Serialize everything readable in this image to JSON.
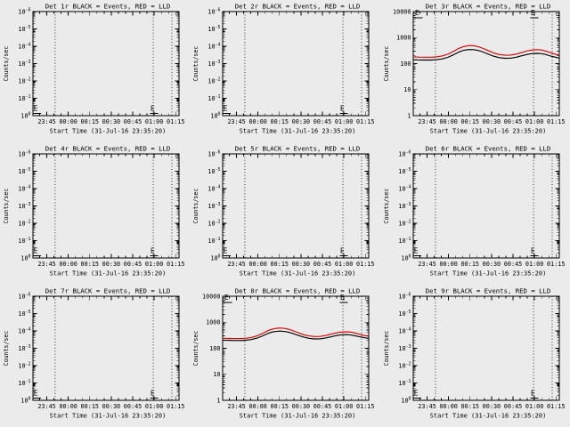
{
  "window_background": "#ebebeb",
  "chart_common": {
    "type": "line",
    "y_scale": "log",
    "xlabel": "Start Time (31-Jul-16 23:35:20)",
    "ylabel": "Counts/sec",
    "x_tick_labels": [
      "23:45",
      "00:00",
      "00:15",
      "00:30",
      "00:45",
      "01:00",
      "01:15"
    ],
    "x_tick_minutes": [
      9.67,
      24.67,
      39.67,
      54.67,
      69.67,
      84.67,
      99.67
    ],
    "x_range_minutes": [
      0,
      102
    ],
    "x_minor_step_minutes": 5,
    "dotted_lines_minutes": [
      15.5,
      84,
      97
    ],
    "grid": "off",
    "legend": {
      "black": "Events",
      "red": "LLD"
    },
    "colors": {
      "events": "#000000",
      "lld": "#dd0000",
      "axis": "#000000"
    }
  },
  "chart_data": [
    {
      "detector": "Det 1r",
      "title": "Det 1r BLACK = Events, RED = LLD",
      "empty": true,
      "y_tick_labels_bottom_to_top": [
        "10^0",
        "10^-1",
        "10^-2",
        "10^-3",
        "10^-4",
        "10^-5",
        "10^-6"
      ],
      "flags": [
        {
          "label": "E",
          "t": 0.4,
          "pos": "bottom",
          "dash": true
        },
        {
          "label": "E",
          "t": 82,
          "pos": "bottom",
          "dash": true
        }
      ],
      "series": []
    },
    {
      "detector": "Det 2r",
      "title": "Det 2r BLACK = Events, RED = LLD",
      "empty": true,
      "y_tick_labels_bottom_to_top": [
        "10^0",
        "10^-1",
        "10^-2",
        "10^-3",
        "10^-4",
        "10^-5",
        "10^-6"
      ],
      "flags": [
        {
          "label": "E",
          "t": 0.4,
          "pos": "bottom",
          "dash": true
        },
        {
          "label": "E",
          "t": 82,
          "pos": "bottom",
          "dash": true
        }
      ],
      "series": []
    },
    {
      "detector": "Det 3r",
      "title": "Det 3r BLACK = Events, RED = LLD",
      "empty": false,
      "y_tick_labels_bottom_to_top": [
        "1",
        "10",
        "100",
        "1000",
        "10000"
      ],
      "ylim": [
        1,
        10000
      ],
      "flags": [
        {
          "label": "E",
          "t": 1.2,
          "pos": "top",
          "dash": true
        },
        {
          "label": "E",
          "t": 82,
          "pos": "top",
          "dash": true
        }
      ],
      "series": [
        {
          "name": "Events",
          "color": "#000000",
          "points": [
            [
              0,
              140
            ],
            [
              4,
              138
            ],
            [
              8,
              137
            ],
            [
              12,
              137
            ],
            [
              16,
              141
            ],
            [
              20,
              151
            ],
            [
              24,
              173
            ],
            [
              28,
              216
            ],
            [
              32,
              281
            ],
            [
              35,
              322
            ],
            [
              38,
              344
            ],
            [
              40,
              348
            ],
            [
              42,
              344
            ],
            [
              45,
              324
            ],
            [
              48,
              290
            ],
            [
              52,
              236
            ],
            [
              56,
              193
            ],
            [
              60,
              169
            ],
            [
              64,
              160
            ],
            [
              68,
              162
            ],
            [
              72,
              176
            ],
            [
              76,
              201
            ],
            [
              80,
              228
            ],
            [
              83,
              243
            ],
            [
              86,
              248
            ],
            [
              89,
              243
            ],
            [
              92,
              226
            ],
            [
              96,
              196
            ],
            [
              100,
              172
            ],
            [
              102,
              162
            ]
          ]
        },
        {
          "name": "LLD",
          "color": "#dd0000",
          "points": [
            [
              0,
              182
            ],
            [
              4,
              178
            ],
            [
              8,
              176
            ],
            [
              12,
              176
            ],
            [
              16,
              181
            ],
            [
              20,
              197
            ],
            [
              24,
              229
            ],
            [
              28,
              291
            ],
            [
              32,
              388
            ],
            [
              35,
              450
            ],
            [
              38,
              486
            ],
            [
              40,
              495
            ],
            [
              42,
              488
            ],
            [
              45,
              452
            ],
            [
              48,
              398
            ],
            [
              52,
              320
            ],
            [
              56,
              259
            ],
            [
              60,
              223
            ],
            [
              64,
              210
            ],
            [
              68,
              213
            ],
            [
              72,
              233
            ],
            [
              76,
              270
            ],
            [
              80,
              312
            ],
            [
              83,
              334
            ],
            [
              86,
              344
            ],
            [
              89,
              336
            ],
            [
              92,
              308
            ],
            [
              96,
              262
            ],
            [
              100,
              224
            ],
            [
              102,
              210
            ]
          ]
        }
      ]
    },
    {
      "detector": "Det 4r",
      "title": "Det 4r BLACK = Events, RED = LLD",
      "empty": true,
      "y_tick_labels_bottom_to_top": [
        "10^0",
        "10^-1",
        "10^-2",
        "10^-3",
        "10^-4",
        "10^-5",
        "10^-6"
      ],
      "flags": [
        {
          "label": "E",
          "t": 0.4,
          "pos": "bottom",
          "dash": true
        },
        {
          "label": "E",
          "t": 82,
          "pos": "bottom",
          "dash": true
        }
      ],
      "series": []
    },
    {
      "detector": "Det 5r",
      "title": "Det 5r BLACK = Events, RED = LLD",
      "empty": true,
      "y_tick_labels_bottom_to_top": [
        "10^0",
        "10^-1",
        "10^-2",
        "10^-3",
        "10^-4",
        "10^-5",
        "10^-6"
      ],
      "flags": [
        {
          "label": "E",
          "t": 0.4,
          "pos": "bottom",
          "dash": true
        },
        {
          "label": "E",
          "t": 82,
          "pos": "bottom",
          "dash": true
        }
      ],
      "series": []
    },
    {
      "detector": "Det 6r",
      "title": "Det 6r BLACK = Events, RED = LLD",
      "empty": true,
      "y_tick_labels_bottom_to_top": [
        "10^0",
        "10^-1",
        "10^-2",
        "10^-3",
        "10^-4",
        "10^-5",
        "10^-6"
      ],
      "flags": [
        {
          "label": "E",
          "t": 0.4,
          "pos": "bottom",
          "dash": true
        },
        {
          "label": "E",
          "t": 82,
          "pos": "bottom",
          "dash": true
        }
      ],
      "series": []
    },
    {
      "detector": "Det 7r",
      "title": "Det 7r BLACK = Events, RED = LLD",
      "empty": true,
      "y_tick_labels_bottom_to_top": [
        "10^0",
        "10^-1",
        "10^-2",
        "10^-3",
        "10^-4",
        "10^-5",
        "10^-6"
      ],
      "flags": [
        {
          "label": "E",
          "t": 0.4,
          "pos": "bottom",
          "dash": true
        },
        {
          "label": "E",
          "t": 82,
          "pos": "bottom",
          "dash": true
        }
      ],
      "series": []
    },
    {
      "detector": "Det 8r",
      "title": "Det 8r BLACK = Events, RED = LLD",
      "empty": false,
      "y_tick_labels_bottom_to_top": [
        "1",
        "10",
        "100",
        "1000",
        "10000"
      ],
      "ylim": [
        1,
        10000
      ],
      "flags": [
        {
          "label": "E",
          "t": 1.2,
          "pos": "top",
          "dash": true
        },
        {
          "label": "E",
          "t": 82,
          "pos": "top",
          "dash": true
        }
      ],
      "series": [
        {
          "name": "Events",
          "color": "#000000",
          "points": [
            [
              0,
              205
            ],
            [
              4,
              201
            ],
            [
              8,
              198
            ],
            [
              12,
              198
            ],
            [
              16,
              203
            ],
            [
              20,
              216
            ],
            [
              24,
              246
            ],
            [
              28,
              300
            ],
            [
              32,
              378
            ],
            [
              35,
              425
            ],
            [
              38,
              450
            ],
            [
              40,
              457
            ],
            [
              42,
              450
            ],
            [
              45,
              426
            ],
            [
              48,
              386
            ],
            [
              52,
              322
            ],
            [
              56,
              273
            ],
            [
              60,
              241
            ],
            [
              64,
              228
            ],
            [
              68,
              231
            ],
            [
              72,
              249
            ],
            [
              76,
              281
            ],
            [
              80,
              312
            ],
            [
              83,
              327
            ],
            [
              86,
              333
            ],
            [
              89,
              327
            ],
            [
              92,
              306
            ],
            [
              96,
              273
            ],
            [
              100,
              249
            ],
            [
              102,
              240
            ]
          ]
        },
        {
          "name": "LLD",
          "color": "#dd0000",
          "points": [
            [
              0,
              242
            ],
            [
              4,
              237
            ],
            [
              8,
              235
            ],
            [
              12,
              235
            ],
            [
              16,
              241
            ],
            [
              20,
              259
            ],
            [
              24,
              299
            ],
            [
              28,
              374
            ],
            [
              32,
              488
            ],
            [
              35,
              552
            ],
            [
              38,
              590
            ],
            [
              40,
              601
            ],
            [
              42,
              592
            ],
            [
              45,
              556
            ],
            [
              48,
              500
            ],
            [
              52,
              412
            ],
            [
              56,
              342
            ],
            [
              60,
              299
            ],
            [
              64,
              282
            ],
            [
              68,
              286
            ],
            [
              72,
              311
            ],
            [
              76,
              356
            ],
            [
              80,
              400
            ],
            [
              83,
              420
            ],
            [
              86,
              429
            ],
            [
              89,
              421
            ],
            [
              92,
              390
            ],
            [
              96,
              341
            ],
            [
              100,
              304
            ],
            [
              102,
              290
            ]
          ]
        }
      ]
    },
    {
      "detector": "Det 9r",
      "title": "Det 9r BLACK = Events, RED = LLD",
      "empty": true,
      "y_tick_labels_bottom_to_top": [
        "10^0",
        "10^-1",
        "10^-2",
        "10^-3",
        "10^-4",
        "10^-5",
        "10^-6"
      ],
      "flags": [
        {
          "label": "E",
          "t": 0.4,
          "pos": "bottom",
          "dash": true
        },
        {
          "label": "E",
          "t": 82,
          "pos": "bottom",
          "dash": true
        }
      ],
      "series": []
    }
  ]
}
